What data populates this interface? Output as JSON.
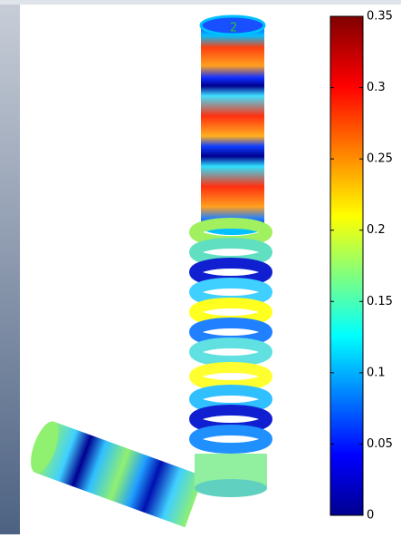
{
  "annotation": "2",
  "colorbar": {
    "lim": [
      0,
      0.35
    ],
    "ticks": [
      0,
      0.05,
      0.1,
      0.15,
      0.2,
      0.25,
      0.3,
      0.35
    ]
  }
}
